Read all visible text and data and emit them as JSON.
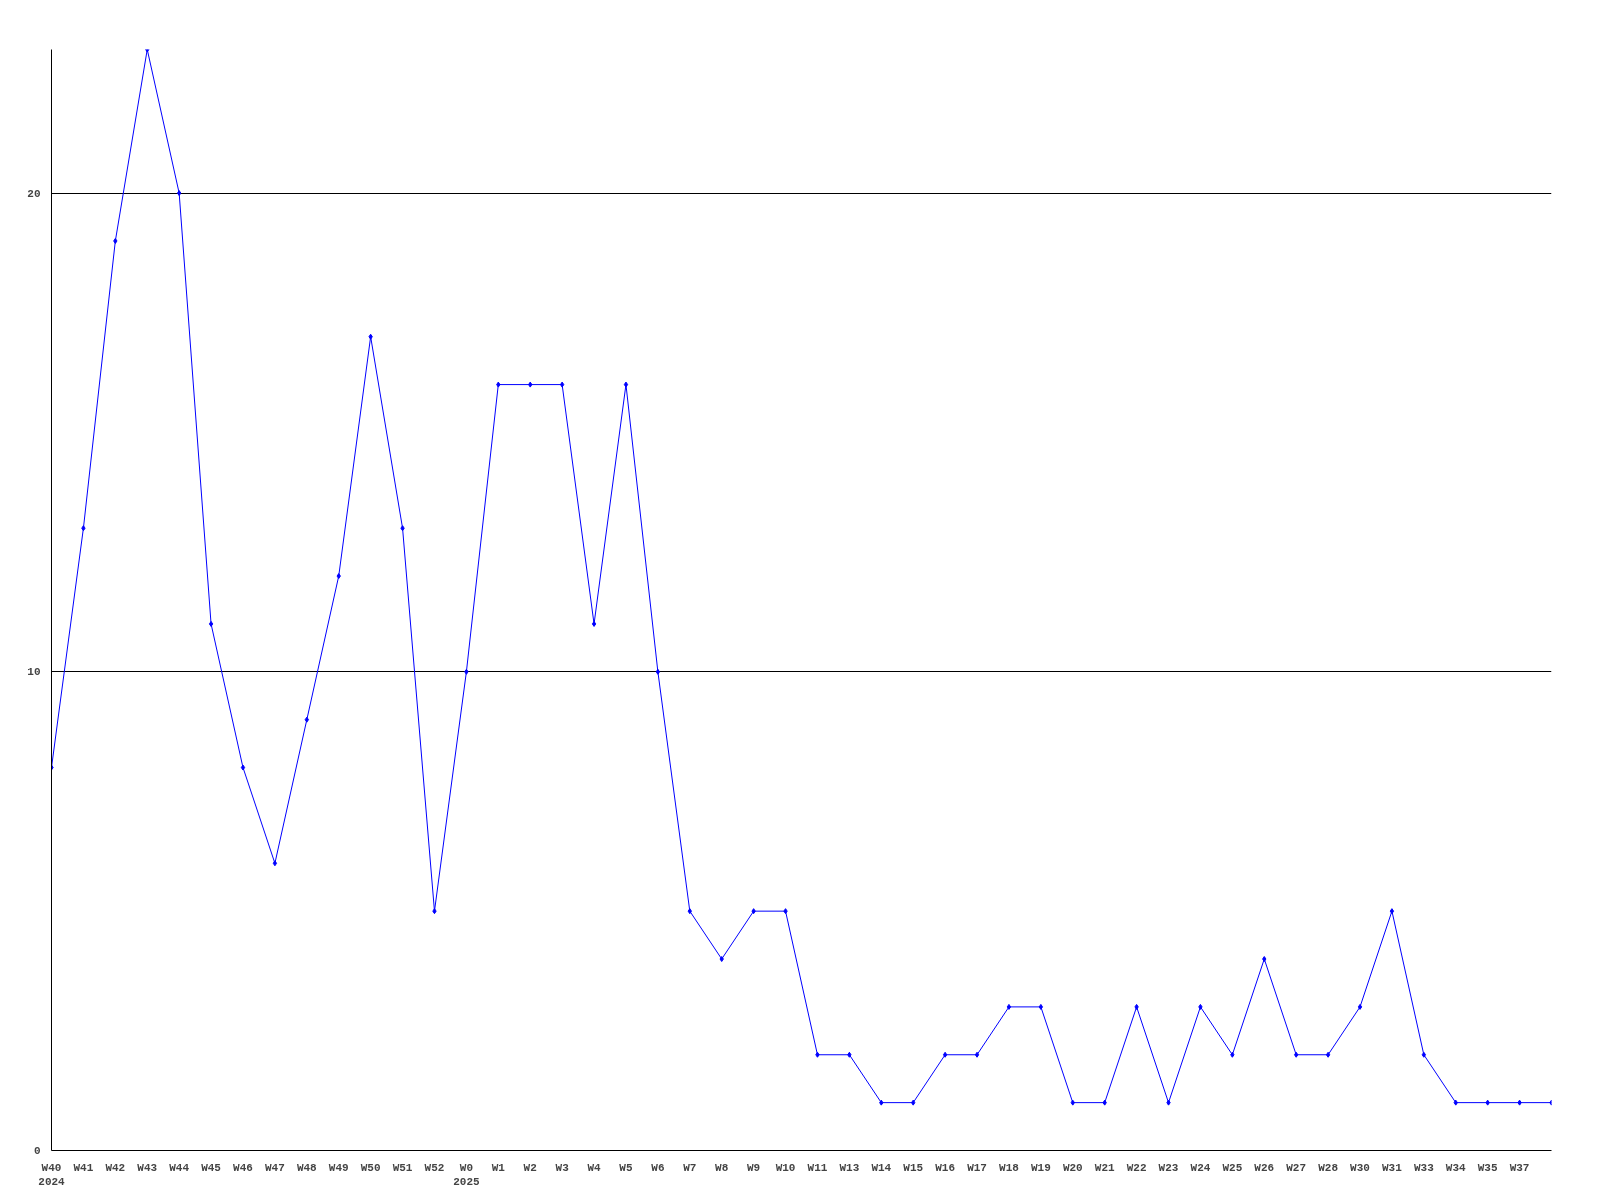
{
  "chart_data": {
    "type": "line",
    "categories": [
      "W40\n2024",
      "W41",
      "W42",
      "W43",
      "W44",
      "W45",
      "W46",
      "W47",
      "W48",
      "W49",
      "W50",
      "W51",
      "W52",
      "W0\n2025",
      "W1",
      "W2",
      "W3",
      "W4",
      "W5",
      "W6",
      "W7",
      "W8",
      "W9",
      "W10",
      "W11",
      "W13",
      "W14",
      "W15",
      "W16",
      "W17",
      "W18",
      "W19",
      "W20",
      "W21",
      "W22",
      "W23",
      "W24",
      "W25",
      "W26",
      "W27",
      "W28",
      "W30",
      "W31",
      "W33",
      "W34",
      "W35",
      "W37",
      null
    ],
    "series": [
      {
        "color": "#0000ff",
        "values": [
          8,
          13,
          19,
          23,
          20,
          11,
          8,
          6,
          9,
          12,
          17,
          13,
          5,
          10,
          16,
          16,
          16,
          11,
          16,
          10,
          5,
          4,
          5,
          5,
          2,
          2,
          1,
          1,
          2,
          2,
          3,
          3,
          1,
          1,
          3,
          1,
          3,
          2,
          4,
          2,
          2,
          3,
          5,
          2,
          1,
          1,
          1,
          1
        ]
      }
    ],
    "ylim": [
      0,
      23
    ],
    "yticks": [
      0,
      10,
      20
    ],
    "grid": "y",
    "marker": "diamond",
    "line_style": "solid"
  }
}
